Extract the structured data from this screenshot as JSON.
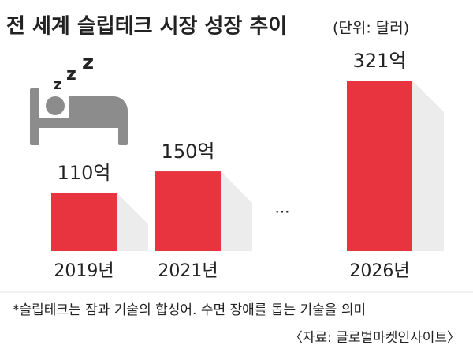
{
  "chart_data": {
    "type": "bar",
    "title": "전 세계 슬립테크 시장 성장 추이",
    "subtitle": "(단위: 달러)",
    "categories": [
      "2019년",
      "2021년",
      "2026년"
    ],
    "values": [
      110,
      150,
      321
    ],
    "value_labels": [
      "110억",
      "150억",
      "321억"
    ],
    "color": "#e8343f",
    "ellipsis": "...",
    "footnote": "*슬립테크는 잠과 기술의 합성어. 수면 장애를 돕는 기술을 의미",
    "source": "〈자료: 글로벌마켓인사이트〉"
  }
}
